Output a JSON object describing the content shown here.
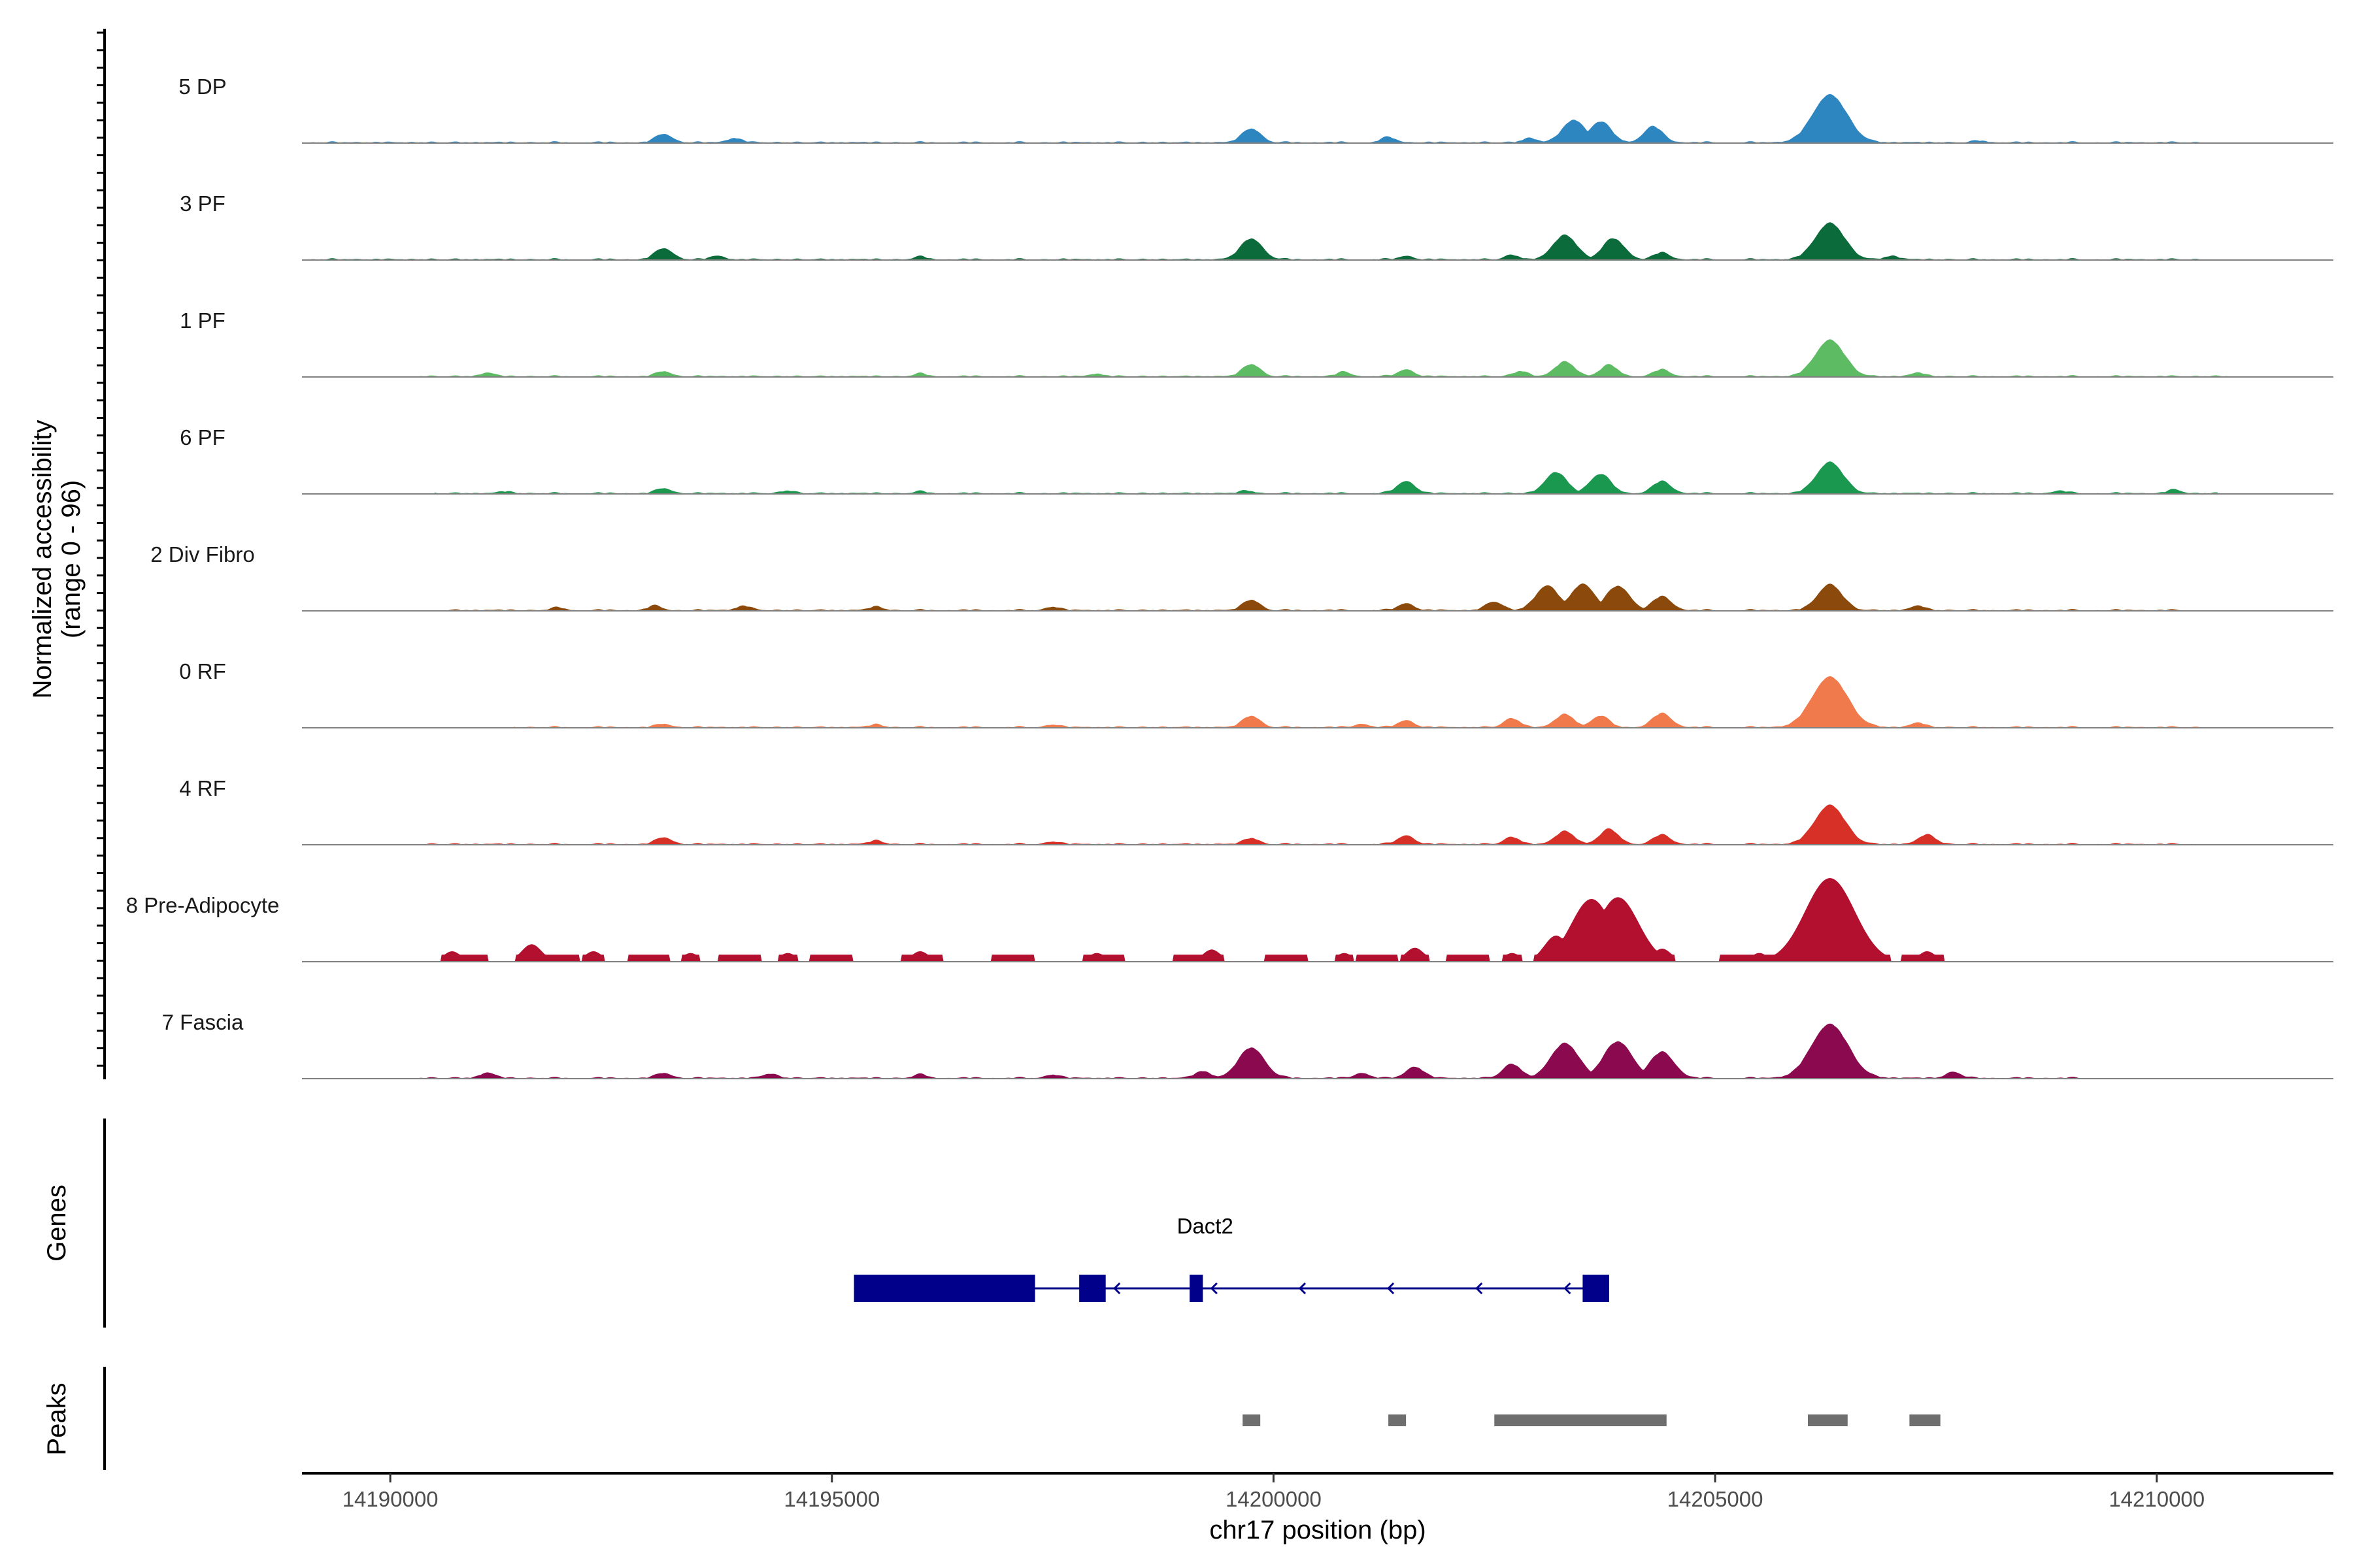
{
  "chart_data": {
    "type": "area",
    "description_axis": {
      "ylabel_line1": "Normalized accessibility",
      "ylabel_line2": "(range 0 - 96)",
      "xlabel": "chr17 position (bp)",
      "xlim": [
        14189000,
        14212000
      ],
      "xticks": [
        14190000,
        14195000,
        14200000,
        14205000,
        14210000
      ],
      "xtick_labels": [
        "14190000",
        "14195000",
        "14200000",
        "14205000",
        "14210000"
      ]
    },
    "tracks": [
      {
        "name": "5 DP",
        "color": "#2E86C1",
        "start": 14189000,
        "end": 14210500,
        "peaks": [
          [
            14193100,
            10
          ],
          [
            14193900,
            5
          ],
          [
            14199750,
            16
          ],
          [
            14201300,
            6
          ],
          [
            14202900,
            5
          ],
          [
            14203400,
            26
          ],
          [
            14203700,
            24
          ],
          [
            14204300,
            18
          ],
          [
            14206300,
            55
          ],
          [
            14208000,
            2
          ]
        ]
      },
      {
        "name": "3 PF",
        "color": "#0B6B3A",
        "start": 14189000,
        "end": 14210500,
        "peaks": [
          [
            14193100,
            13
          ],
          [
            14193700,
            4
          ],
          [
            14196000,
            3
          ],
          [
            14199750,
            24
          ],
          [
            14201500,
            4
          ],
          [
            14202700,
            5
          ],
          [
            14203300,
            28
          ],
          [
            14203850,
            24
          ],
          [
            14204400,
            8
          ],
          [
            14206300,
            42
          ],
          [
            14207000,
            4
          ]
        ]
      },
      {
        "name": "1 PF",
        "color": "#5DBB63",
        "start": 14190300,
        "end": 14210800,
        "peaks": [
          [
            14191100,
            4
          ],
          [
            14193100,
            6
          ],
          [
            14196000,
            3
          ],
          [
            14198000,
            3
          ],
          [
            14199750,
            14
          ],
          [
            14200800,
            5
          ],
          [
            14201500,
            8
          ],
          [
            14202800,
            6
          ],
          [
            14203300,
            17
          ],
          [
            14203800,
            13
          ],
          [
            14204400,
            8
          ],
          [
            14206300,
            42
          ],
          [
            14207300,
            4
          ]
        ]
      },
      {
        "name": "6 PF",
        "color": "#1A9850",
        "start": 14190500,
        "end": 14210700,
        "peaks": [
          [
            14191300,
            2
          ],
          [
            14193100,
            6
          ],
          [
            14194500,
            3
          ],
          [
            14196000,
            2
          ],
          [
            14199700,
            3
          ],
          [
            14201500,
            14
          ],
          [
            14203200,
            24
          ],
          [
            14203700,
            22
          ],
          [
            14204400,
            14
          ],
          [
            14206300,
            36
          ],
          [
            14208900,
            3
          ],
          [
            14210200,
            4
          ]
        ]
      },
      {
        "name": "2 Div Fibro",
        "color": "#8B4A0B",
        "start": 14190600,
        "end": 14210300,
        "peaks": [
          [
            14191900,
            3
          ],
          [
            14193000,
            5
          ],
          [
            14194000,
            5
          ],
          [
            14195500,
            4
          ],
          [
            14197500,
            4
          ],
          [
            14199750,
            12
          ],
          [
            14201500,
            8
          ],
          [
            14202500,
            10
          ],
          [
            14203100,
            28
          ],
          [
            14203500,
            30
          ],
          [
            14203900,
            28
          ],
          [
            14204400,
            16
          ],
          [
            14206300,
            30
          ],
          [
            14207300,
            5
          ]
        ]
      },
      {
        "name": "0 RF",
        "color": "#F07A4C",
        "start": 14191400,
        "end": 14210500,
        "peaks": [
          [
            14193100,
            4
          ],
          [
            14195500,
            3
          ],
          [
            14197500,
            3
          ],
          [
            14199750,
            13
          ],
          [
            14201000,
            4
          ],
          [
            14201500,
            8
          ],
          [
            14202700,
            10
          ],
          [
            14203300,
            15
          ],
          [
            14203700,
            13
          ],
          [
            14204400,
            16
          ],
          [
            14206300,
            58
          ],
          [
            14207300,
            5
          ]
        ]
      },
      {
        "name": "4 RF",
        "color": "#D73027",
        "start": 14190400,
        "end": 14210400,
        "peaks": [
          [
            14193100,
            8
          ],
          [
            14195500,
            4
          ],
          [
            14197500,
            3
          ],
          [
            14199750,
            7
          ],
          [
            14201500,
            10
          ],
          [
            14202700,
            8
          ],
          [
            14203300,
            15
          ],
          [
            14203800,
            17
          ],
          [
            14204400,
            11
          ],
          [
            14206300,
            45
          ],
          [
            14207400,
            11
          ]
        ]
      },
      {
        "name": "8 Pre-Adipocyte",
        "color": "#B2102E",
        "start": 14190300,
        "end": 14207600,
        "blocky": true,
        "peaks": [
          [
            14190700,
            12
          ],
          [
            14191600,
            20
          ],
          [
            14192300,
            12
          ],
          [
            14193400,
            10
          ],
          [
            14194500,
            10
          ],
          [
            14196000,
            12
          ],
          [
            14198000,
            10
          ],
          [
            14199300,
            14
          ],
          [
            14200800,
            10
          ],
          [
            14201600,
            16
          ],
          [
            14202700,
            10
          ],
          [
            14203200,
            30
          ],
          [
            14203600,
            72
          ],
          [
            14203900,
            74
          ],
          [
            14204400,
            15
          ],
          [
            14205500,
            10
          ],
          [
            14206300,
            96
          ],
          [
            14207400,
            12
          ]
        ]
      },
      {
        "name": "7 Fascia",
        "color": "#8B0A4F",
        "start": 14190300,
        "end": 14209300,
        "peaks": [
          [
            14191100,
            6
          ],
          [
            14193100,
            6
          ],
          [
            14194300,
            5
          ],
          [
            14196000,
            4
          ],
          [
            14197500,
            4
          ],
          [
            14199200,
            8
          ],
          [
            14199750,
            35
          ],
          [
            14201000,
            6
          ],
          [
            14201600,
            13
          ],
          [
            14202700,
            16
          ],
          [
            14203300,
            40
          ],
          [
            14203900,
            42
          ],
          [
            14204400,
            30
          ],
          [
            14206300,
            62
          ],
          [
            14207700,
            7
          ]
        ]
      }
    ],
    "genes": {
      "title": "Genes",
      "name": "Dact2",
      "color": "#00008B",
      "line": [
        14195250,
        14203800
      ],
      "exons": [
        [
          14195250,
          14197300
        ],
        [
          14197800,
          14198100
        ],
        [
          14199050,
          14199200
        ],
        [
          14203500,
          14203800
        ]
      ],
      "strand_arrows": [
        14198200,
        14199300,
        14200300,
        14201300,
        14202300,
        14203300
      ]
    },
    "peaks_track": {
      "title": "Peaks",
      "color": "#6e6e6e",
      "regions": [
        [
          14199650,
          14199850
        ],
        [
          14201300,
          14201500
        ],
        [
          14202500,
          14204450
        ],
        [
          14206050,
          14206500
        ],
        [
          14207200,
          14207550
        ]
      ]
    }
  }
}
